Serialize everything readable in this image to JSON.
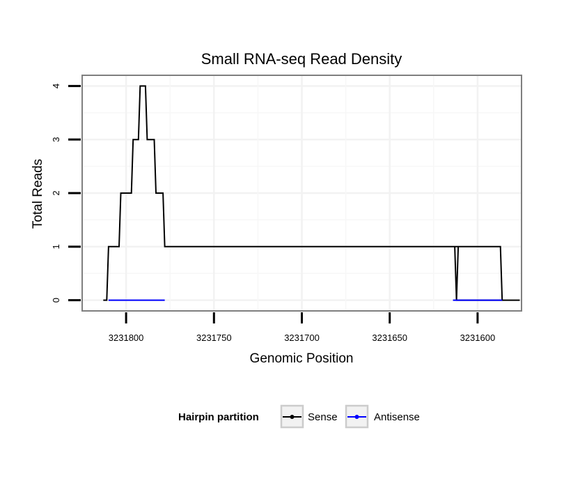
{
  "chart_data": {
    "type": "line",
    "title": "Small RNA-seq Read Density",
    "xlabel": "Genomic Position",
    "ylabel": "Total Reads",
    "xlim": [
      3231825,
      3231575
    ],
    "x_reversed": true,
    "ylim": [
      -0.2,
      4.2
    ],
    "x_ticks": [
      3231800,
      3231750,
      3231700,
      3231650,
      3231600
    ],
    "x_tick_labels": [
      "3231800",
      "3231750",
      "3231700",
      "3231650",
      "3231600"
    ],
    "y_ticks": [
      0,
      1,
      2,
      3,
      4
    ],
    "y_tick_labels": [
      "0",
      "1",
      "2",
      "3",
      "4"
    ],
    "grid": true,
    "legend": {
      "title": "Hairpin partition",
      "position": "bottom"
    },
    "series": [
      {
        "name": "Sense",
        "color": "#000000",
        "x": [
          3231813,
          3231811,
          3231810,
          3231804,
          3231803,
          3231797,
          3231796,
          3231793,
          3231792,
          3231789,
          3231788,
          3231784,
          3231783,
          3231779,
          3231778,
          3231587,
          3231586,
          3231588,
          3231587,
          3231588,
          3231612,
          3231613,
          3231611,
          3231612,
          3231611,
          3231576
        ],
        "y": [
          0,
          0,
          1,
          1,
          2,
          2,
          3,
          3,
          4,
          4,
          3,
          3,
          2,
          2,
          1,
          1,
          0,
          0,
          0,
          0,
          0,
          1,
          1,
          0,
          0,
          0
        ]
      },
      {
        "name": "Antisense",
        "color": "#0000ff",
        "x": [
          3231810,
          3231778,
          3231614,
          3231586
        ],
        "y": [
          0,
          0,
          0,
          0
        ]
      }
    ]
  }
}
